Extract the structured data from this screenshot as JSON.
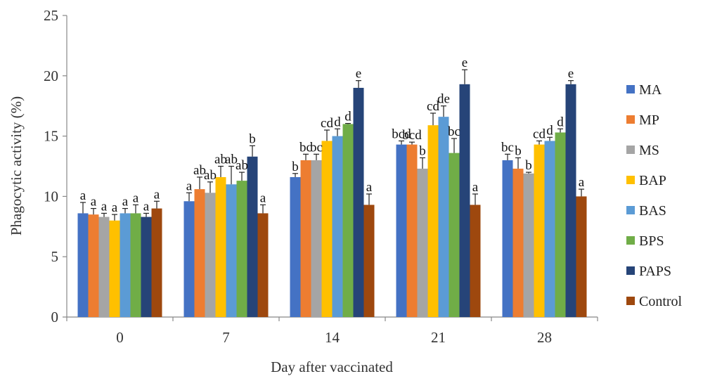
{
  "chart_data": {
    "type": "bar",
    "xlabel": "Day after vaccinated",
    "ylabel": "Phagocytic activity (%)",
    "ylim": [
      0,
      25
    ],
    "yticks": [
      "0",
      "5",
      "10",
      "15",
      "20",
      "25"
    ],
    "categories": [
      "0",
      "7",
      "14",
      "21",
      "28"
    ],
    "grid": false,
    "legend_position": "right",
    "series": [
      {
        "name": "MA",
        "color": "#4472C4",
        "values": [
          8.6,
          9.6,
          11.6,
          14.3,
          13.0
        ],
        "errors": [
          0.9,
          0.7,
          0.3,
          0.3,
          0.5
        ],
        "labels": [
          "a",
          "a",
          "b",
          "bcd",
          "bc"
        ]
      },
      {
        "name": "MP",
        "color": "#ED7D31",
        "values": [
          8.5,
          10.6,
          13.0,
          14.3,
          12.3
        ],
        "errors": [
          0.5,
          1.0,
          0.5,
          0.2,
          0.9
        ],
        "labels": [
          "a",
          "ab",
          "bc",
          "bcd",
          "b"
        ]
      },
      {
        "name": "MS",
        "color": "#A5A5A5",
        "values": [
          8.3,
          10.3,
          13.0,
          12.3,
          11.9
        ],
        "errors": [
          0.3,
          0.9,
          0.5,
          0.9,
          0.1
        ],
        "labels": [
          "a",
          "ab",
          "bc",
          "b",
          "b"
        ]
      },
      {
        "name": "BAP",
        "color": "#FFC000",
        "values": [
          8.0,
          11.6,
          14.6,
          15.9,
          14.3
        ],
        "errors": [
          0.5,
          0.9,
          0.9,
          1.0,
          0.3
        ],
        "labels": [
          "a",
          "ab",
          "cd",
          "cd",
          "cd"
        ]
      },
      {
        "name": "BAS",
        "color": "#5B9BD5",
        "values": [
          8.6,
          11.0,
          15.0,
          16.6,
          14.6
        ],
        "errors": [
          0.4,
          1.5,
          0.6,
          0.9,
          0.3
        ],
        "labels": [
          "a",
          "ab",
          "d",
          "de",
          "d"
        ]
      },
      {
        "name": "BPS",
        "color": "#70AD47",
        "values": [
          8.6,
          11.3,
          16.0,
          13.6,
          15.3
        ],
        "errors": [
          0.7,
          0.7,
          0.05,
          1.2,
          0.3
        ],
        "labels": [
          "a",
          "ab",
          "d",
          "bc",
          "d"
        ]
      },
      {
        "name": "PAPS",
        "color": "#264478",
        "values": [
          8.3,
          13.3,
          19.0,
          19.3,
          19.3
        ],
        "errors": [
          0.3,
          0.9,
          0.6,
          1.2,
          0.3
        ],
        "labels": [
          "a",
          "b",
          "e",
          "e",
          "e"
        ]
      },
      {
        "name": "Control",
        "color": "#9E480E",
        "values": [
          9.0,
          8.6,
          9.3,
          9.3,
          10.0
        ],
        "errors": [
          0.6,
          0.7,
          0.9,
          0.9,
          0.6
        ],
        "labels": [
          "a",
          "a",
          "a",
          "a",
          "a"
        ]
      }
    ]
  }
}
